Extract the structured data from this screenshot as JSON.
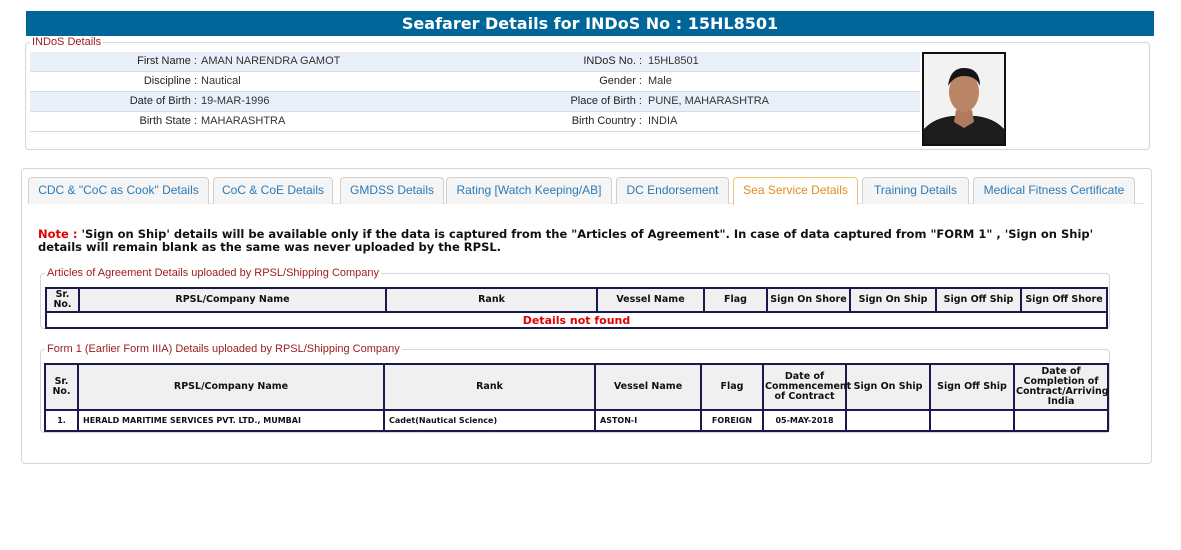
{
  "header": {
    "title": "Seafarer Details for INDoS No : 15HL8501"
  },
  "indos": {
    "legend": "INDoS Details",
    "rows": [
      {
        "label1": "First Name :",
        "value1": "AMAN NARENDRA GAMOT",
        "label2": "INDoS No. :",
        "value2": "15HL8501"
      },
      {
        "label1": "Discipline :",
        "value1": "Nautical",
        "label2": "Gender :",
        "value2": "Male"
      },
      {
        "label1": "Date of Birth :",
        "value1": "19-MAR-1996",
        "label2": "Place of Birth :",
        "value2": "PUNE, MAHARASHTRA"
      },
      {
        "label1": "Birth State :",
        "value1": "MAHARASHTRA",
        "label2": "Birth Country :",
        "value2": "INDIA"
      }
    ]
  },
  "tabs": [
    {
      "label": "CDC & \"CoC as Cook\" Details"
    },
    {
      "label": "CoC & CoE Details"
    },
    {
      "label": "GMDSS Details"
    },
    {
      "label": "Rating [Watch Keeping/AB]"
    },
    {
      "label": "DC Endorsement"
    },
    {
      "label": "Sea Service Details",
      "active": true
    },
    {
      "label": "Training Details"
    },
    {
      "label": "Medical Fitness Certificate"
    }
  ],
  "note": {
    "label": "Note :",
    "text": " 'Sign on Ship' details will be available only if the data is captured from the \"Articles of Agreement\". In case of data captured from \"FORM 1\" , 'Sign on Ship' details will remain blank as the same was never uploaded by the RPSL."
  },
  "articles": {
    "legend": "Articles of Agreement Details uploaded by RPSL/Shipping Company",
    "headers": [
      "Sr. No.",
      "RPSL/Company Name",
      "Rank",
      "Vessel Name",
      "Flag",
      "Sign On Shore",
      "Sign On Ship",
      "Sign Off Ship",
      "Sign Off Shore"
    ],
    "empty": "Details not found"
  },
  "form1": {
    "legend": "Form 1 (Earlier Form IIIA) Details uploaded by RPSL/Shipping Company",
    "headers": [
      "Sr. No.",
      "RPSL/Company Name",
      "Rank",
      "Vessel Name",
      "Flag",
      "Date of Commencement of Contract",
      "Sign On Ship",
      "Sign Off Ship",
      "Date of Completion of Contract/Arriving India"
    ],
    "rows": [
      [
        "1.",
        "HERALD MARITIME SERVICES PVT. LTD., MUMBAI",
        "Cadet(Nautical Science)",
        "ASTON-I",
        "FOREIGN",
        "05-MAY-2018",
        "",
        "",
        ""
      ]
    ]
  },
  "colors": {
    "header_bg": "#006699",
    "active_tab": "#e58a1f",
    "tab_text": "#2a7ab8",
    "legend": "#9b1b1b",
    "alert": "#e00000"
  }
}
